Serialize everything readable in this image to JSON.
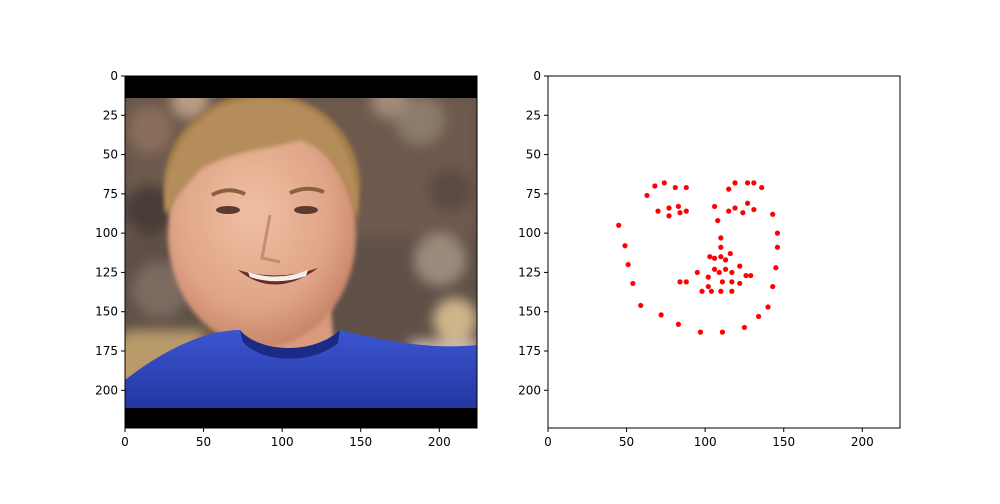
{
  "figure": {
    "background": "#ffffff",
    "axis_color": "#000000"
  },
  "image_panel": {
    "content": "photo of a smiling man with light brown hair wearing a blue jersey, blurred crowd background, black letterbox bars top and bottom",
    "colors": {
      "letterbox": "#000000",
      "skin": "#e2ad8f",
      "hair": "#b08a55",
      "jersey": "#2a41b8",
      "background_blur": "#6b5a4f"
    }
  },
  "chart_data": [
    {
      "type": "image",
      "title": "",
      "xlabel": "",
      "ylabel": "",
      "xlim": [
        0,
        224
      ],
      "ylim": [
        224,
        0
      ],
      "grid": false,
      "xticks": [
        0,
        50,
        100,
        150,
        200
      ],
      "yticks": [
        0,
        25,
        50,
        75,
        100,
        125,
        150,
        175,
        200
      ]
    },
    {
      "type": "scatter",
      "title": "",
      "xlabel": "",
      "ylabel": "",
      "xlim": [
        0,
        224
      ],
      "ylim": [
        224,
        0
      ],
      "grid": false,
      "xticks": [
        0,
        50,
        100,
        150,
        200
      ],
      "yticks": [
        0,
        25,
        50,
        75,
        100,
        125,
        150,
        175,
        200
      ],
      "color": "#ff0000",
      "points": [
        [
          45,
          95
        ],
        [
          49,
          108
        ],
        [
          51,
          120
        ],
        [
          54,
          132
        ],
        [
          59,
          146
        ],
        [
          72,
          152
        ],
        [
          83,
          158
        ],
        [
          97,
          163
        ],
        [
          111,
          163
        ],
        [
          125,
          160
        ],
        [
          134,
          153
        ],
        [
          140,
          147
        ],
        [
          143,
          134
        ],
        [
          145,
          122
        ],
        [
          146,
          109
        ],
        [
          146,
          100
        ],
        [
          143,
          88
        ],
        [
          63,
          76
        ],
        [
          68,
          70
        ],
        [
          74,
          68
        ],
        [
          81,
          71
        ],
        [
          88,
          71
        ],
        [
          115,
          72
        ],
        [
          119,
          68
        ],
        [
          127,
          68
        ],
        [
          131,
          68
        ],
        [
          136,
          71
        ],
        [
          108,
          92
        ],
        [
          110,
          103
        ],
        [
          110,
          109
        ],
        [
          110,
          115
        ],
        [
          103,
          115
        ],
        [
          106,
          116
        ],
        [
          113,
          117
        ],
        [
          116,
          113
        ],
        [
          70,
          86
        ],
        [
          77,
          84
        ],
        [
          83,
          83
        ],
        [
          88,
          86
        ],
        [
          84,
          87
        ],
        [
          77,
          89
        ],
        [
          106,
          83
        ],
        [
          115,
          86
        ],
        [
          119,
          84
        ],
        [
          127,
          81
        ],
        [
          131,
          85
        ],
        [
          124,
          87
        ],
        [
          95,
          125
        ],
        [
          102,
          128
        ],
        [
          106,
          123
        ],
        [
          109,
          125
        ],
        [
          113,
          123
        ],
        [
          117,
          125
        ],
        [
          122,
          121
        ],
        [
          126,
          127
        ],
        [
          129,
          127
        ],
        [
          122,
          132
        ],
        [
          117,
          131
        ],
        [
          111,
          131
        ],
        [
          102,
          134
        ],
        [
          98,
          137
        ],
        [
          104,
          137
        ],
        [
          110,
          137
        ],
        [
          117,
          137
        ],
        [
          84,
          131
        ],
        [
          88,
          131
        ]
      ]
    }
  ]
}
